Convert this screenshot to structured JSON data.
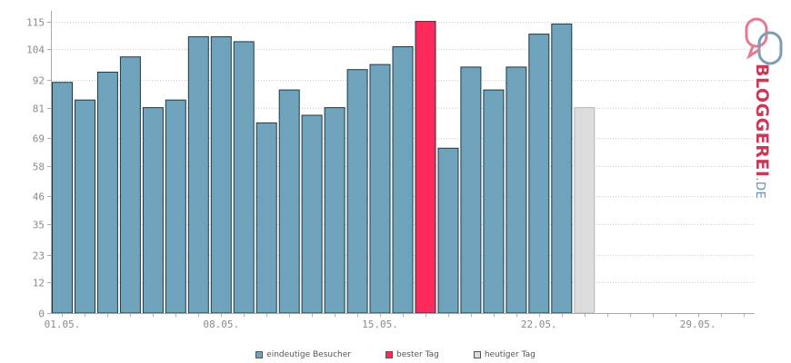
{
  "chart_data": {
    "type": "bar",
    "title": "",
    "xlabel": "",
    "ylabel": "",
    "ylim": [
      0,
      117
    ],
    "yticks": [
      0,
      12,
      23,
      35,
      46,
      58,
      69,
      81,
      92,
      104,
      115
    ],
    "x_tick_labels": [
      {
        "day": 1,
        "label": "01.05."
      },
      {
        "day": 8,
        "label": "08.05."
      },
      {
        "day": 15,
        "label": "15.05."
      },
      {
        "day": 22,
        "label": "22.05."
      },
      {
        "day": 29,
        "label": "29.05."
      }
    ],
    "days_in_axis": 31,
    "grid": true,
    "legend_position": "bottom",
    "colors": {
      "normal": "#6fa2bb",
      "best": "#ff2a5c",
      "today": "#dcdcdc",
      "bar_stroke": "#1e3a46",
      "today_stroke": "#b5b5b5",
      "grid": "#cfcfcf",
      "axis": "#aaaaaa"
    },
    "bars": [
      {
        "day": 1,
        "value": 91,
        "kind": "normal"
      },
      {
        "day": 2,
        "value": 84,
        "kind": "normal"
      },
      {
        "day": 3,
        "value": 95,
        "kind": "normal"
      },
      {
        "day": 4,
        "value": 101,
        "kind": "normal"
      },
      {
        "day": 5,
        "value": 81,
        "kind": "normal"
      },
      {
        "day": 6,
        "value": 84,
        "kind": "normal"
      },
      {
        "day": 7,
        "value": 109,
        "kind": "normal"
      },
      {
        "day": 8,
        "value": 109,
        "kind": "normal"
      },
      {
        "day": 9,
        "value": 107,
        "kind": "normal"
      },
      {
        "day": 10,
        "value": 75,
        "kind": "normal"
      },
      {
        "day": 11,
        "value": 88,
        "kind": "normal"
      },
      {
        "day": 12,
        "value": 78,
        "kind": "normal"
      },
      {
        "day": 13,
        "value": 81,
        "kind": "normal"
      },
      {
        "day": 14,
        "value": 96,
        "kind": "normal"
      },
      {
        "day": 15,
        "value": 98,
        "kind": "normal"
      },
      {
        "day": 16,
        "value": 105,
        "kind": "normal"
      },
      {
        "day": 17,
        "value": 115,
        "kind": "best"
      },
      {
        "day": 18,
        "value": 65,
        "kind": "normal"
      },
      {
        "day": 19,
        "value": 97,
        "kind": "normal"
      },
      {
        "day": 20,
        "value": 88,
        "kind": "normal"
      },
      {
        "day": 21,
        "value": 97,
        "kind": "normal"
      },
      {
        "day": 22,
        "value": 110,
        "kind": "normal"
      },
      {
        "day": 23,
        "value": 114,
        "kind": "normal"
      },
      {
        "day": 24,
        "value": 81,
        "kind": "today"
      }
    ]
  },
  "legend": [
    {
      "label": "eindeutige Besucher",
      "color": "#6fa2bb"
    },
    {
      "label": "bester Tag",
      "color": "#ff2a5c"
    },
    {
      "label": "heutiger Tag",
      "color": "#dcdcdc"
    }
  ],
  "logo": {
    "text": "BLOGGEREI",
    "tld": ".DE"
  }
}
